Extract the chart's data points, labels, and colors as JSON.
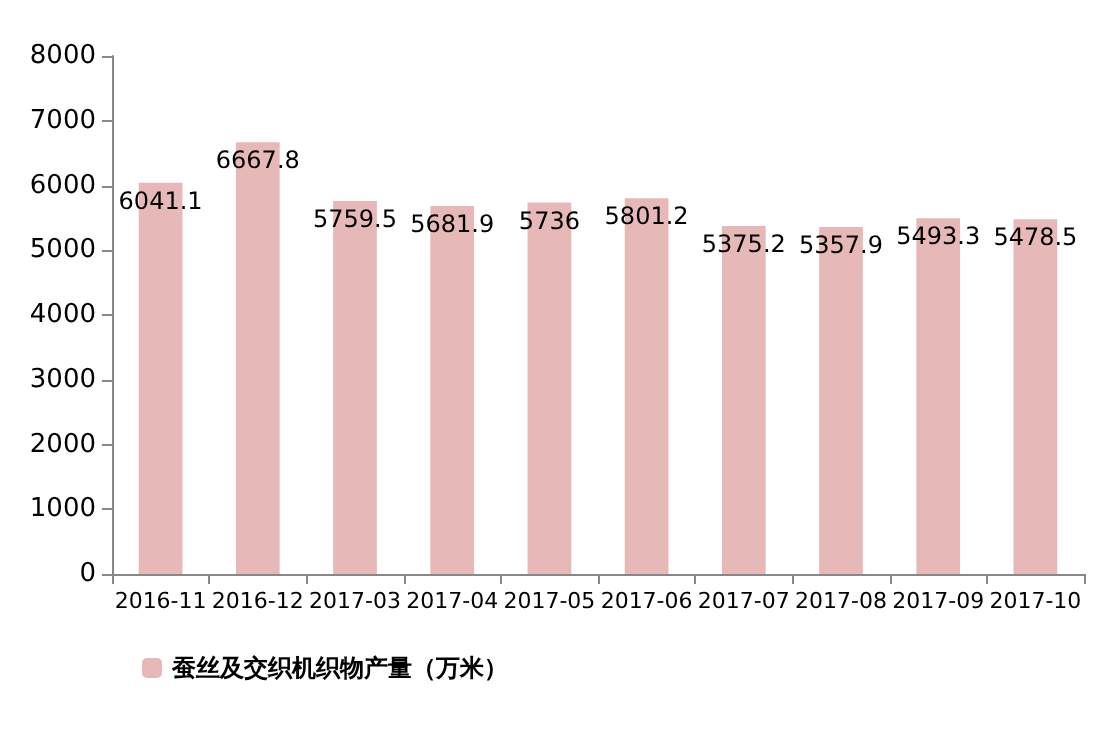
{
  "chart_data": {
    "type": "bar",
    "categories": [
      "2016-11",
      "2016-12",
      "2017-03",
      "2017-04",
      "2017-05",
      "2017-06",
      "2017-07",
      "2017-08",
      "2017-09",
      "2017-10"
    ],
    "series": [
      {
        "name": "蚕丝及交织机织物产量（万米）",
        "color": "#e6b9b8",
        "values": [
          6041.1,
          6667.8,
          5759.5,
          5681.9,
          5736,
          5801.2,
          5375.2,
          5357.9,
          5493.3,
          5478.5
        ]
      }
    ],
    "ylim": [
      0,
      8000
    ],
    "yticks": [
      0,
      1000,
      2000,
      3000,
      4000,
      5000,
      6000,
      7000,
      8000
    ],
    "data_labels": true,
    "grid": false,
    "legend": "bottom left"
  }
}
